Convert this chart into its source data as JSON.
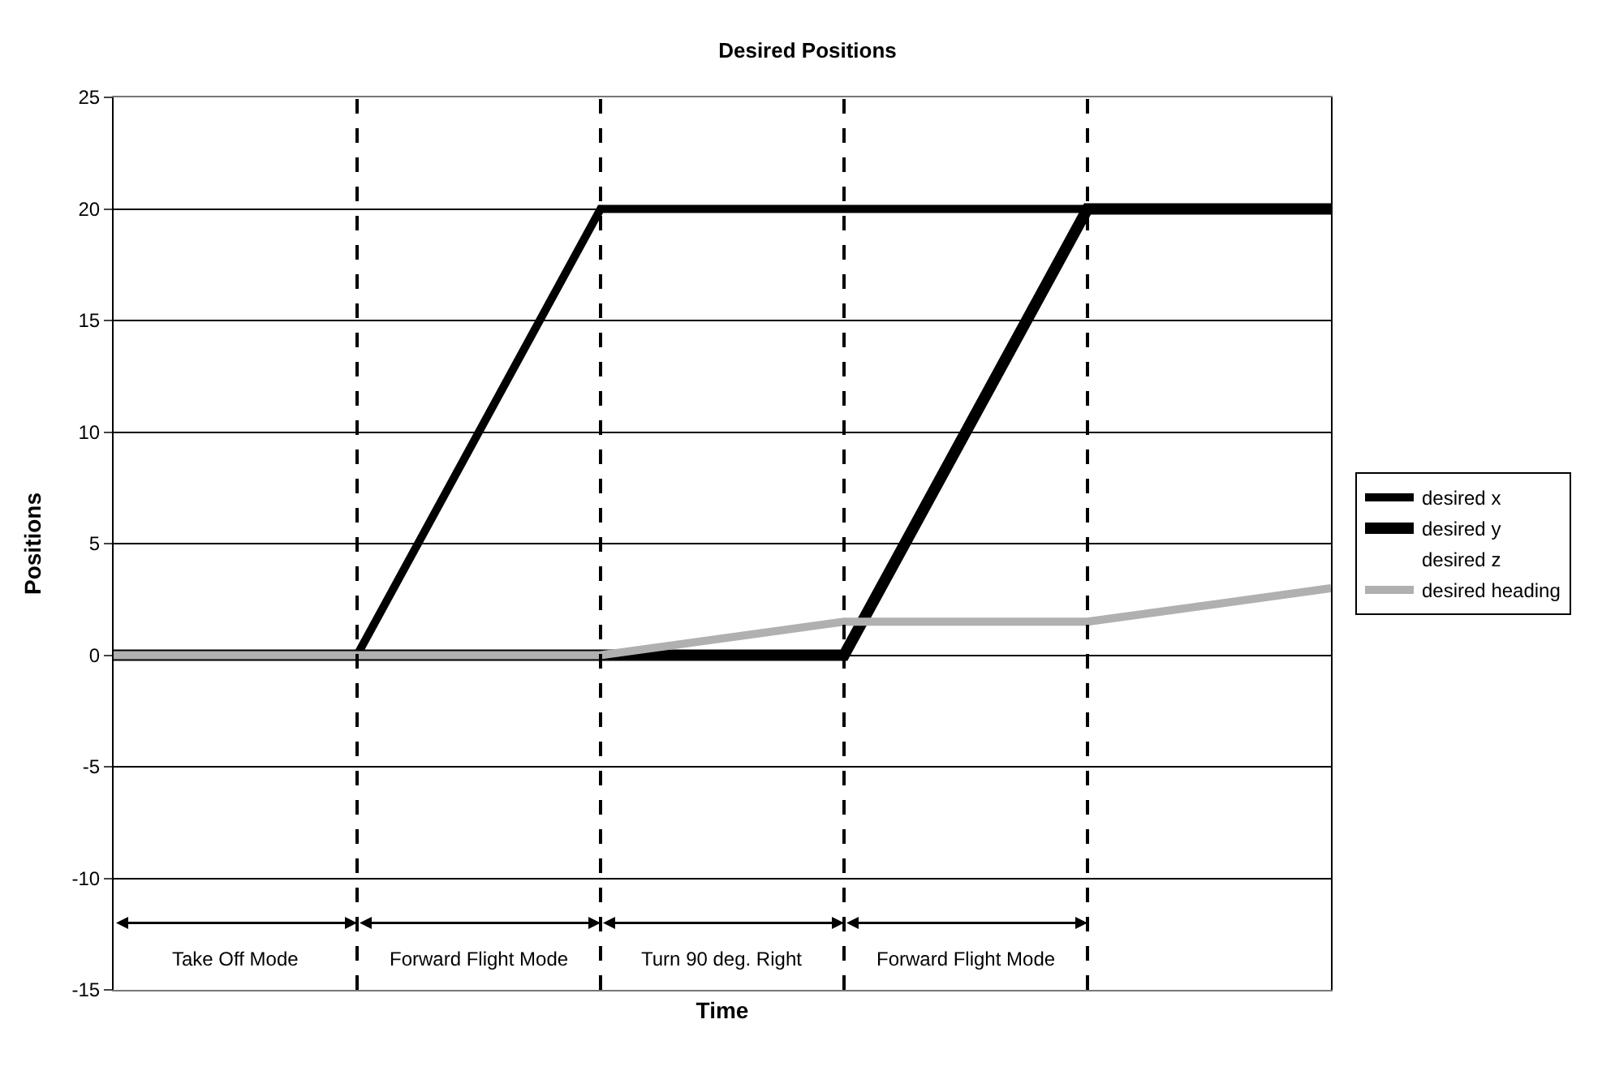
{
  "chart_data": {
    "type": "line",
    "title": "Desired Positions",
    "xlabel": "Time",
    "ylabel": "Positions",
    "categories": [
      null,
      null,
      null,
      null,
      null,
      null
    ],
    "ylim": [
      -15,
      25
    ],
    "yticks": [
      -15,
      -10,
      -5,
      0,
      5,
      10,
      15,
      20,
      25
    ],
    "grid": true,
    "legend": "right",
    "series": [
      {
        "name": "desired x",
        "color": "#000000",
        "values": [
          0,
          0,
          20,
          20,
          20,
          20
        ]
      },
      {
        "name": "desired y",
        "color": "#000000",
        "values": [
          0,
          0,
          0,
          0,
          20,
          20
        ]
      },
      {
        "name": "desired z",
        "values": [
          null,
          null,
          null,
          null,
          null,
          null
        ]
      },
      {
        "name": "desired heading",
        "color": "#b0b0b0",
        "values": [
          0,
          0,
          0,
          1.5,
          1.5,
          3
        ]
      }
    ],
    "annotations": [
      "Take Off Mode",
      "Forward Flight Mode",
      "Turn 90 deg. Right",
      "Forward Flight Mode"
    ]
  }
}
